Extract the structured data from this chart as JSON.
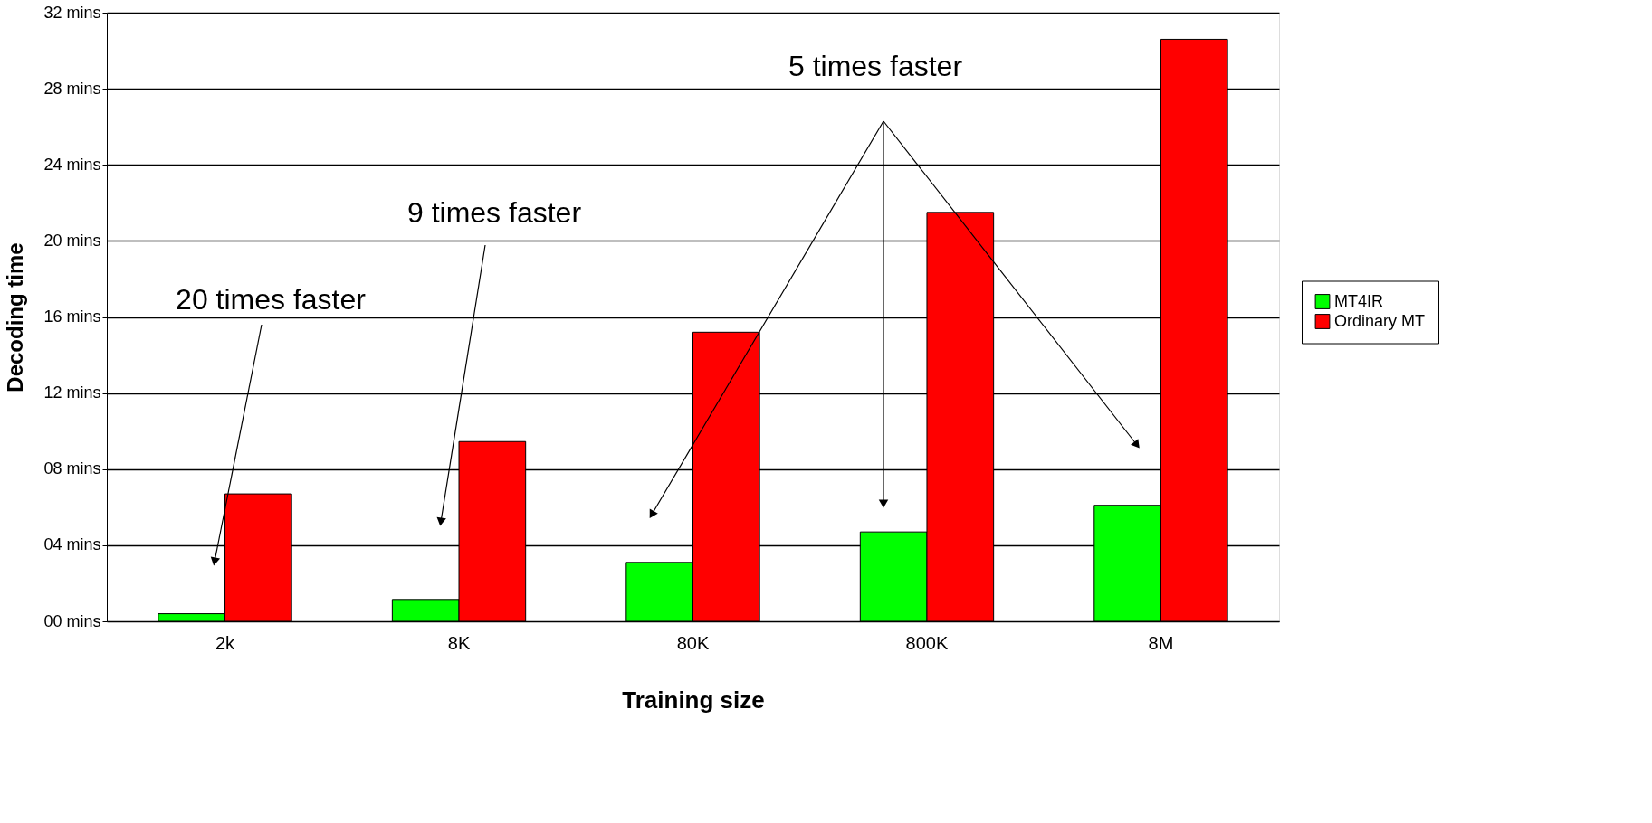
{
  "chart_data": {
    "type": "bar",
    "categories": [
      "2k",
      "8K",
      "80K",
      "800K",
      "8M"
    ],
    "series": [
      {
        "name": "MT4IR",
        "color": "#00ff00",
        "values": [
          0.4,
          1.15,
          3.1,
          4.7,
          6.1
        ]
      },
      {
        "name": "Ordinary MT",
        "color": "#ff0000",
        "values": [
          6.7,
          9.45,
          15.2,
          21.5,
          30.6
        ]
      }
    ],
    "xlabel": "Training size",
    "ylabel": "Decoding time",
    "ylim": [
      0,
      32
    ],
    "yticks": [
      {
        "value": 0,
        "label": "00 mins"
      },
      {
        "value": 4,
        "label": "04 mins"
      },
      {
        "value": 8,
        "label": "08 mins"
      },
      {
        "value": 12,
        "label": "12 mins"
      },
      {
        "value": 16,
        "label": "16 mins"
      },
      {
        "value": 20,
        "label": "20 mins"
      },
      {
        "value": 24,
        "label": "24 mins"
      },
      {
        "value": 28,
        "label": "28 mins"
      },
      {
        "value": 32,
        "label": "32 mins"
      }
    ],
    "grid": "y",
    "legend": "right",
    "annotations": [
      "20 times faster",
      "9 times faster",
      "5 times faster"
    ]
  }
}
